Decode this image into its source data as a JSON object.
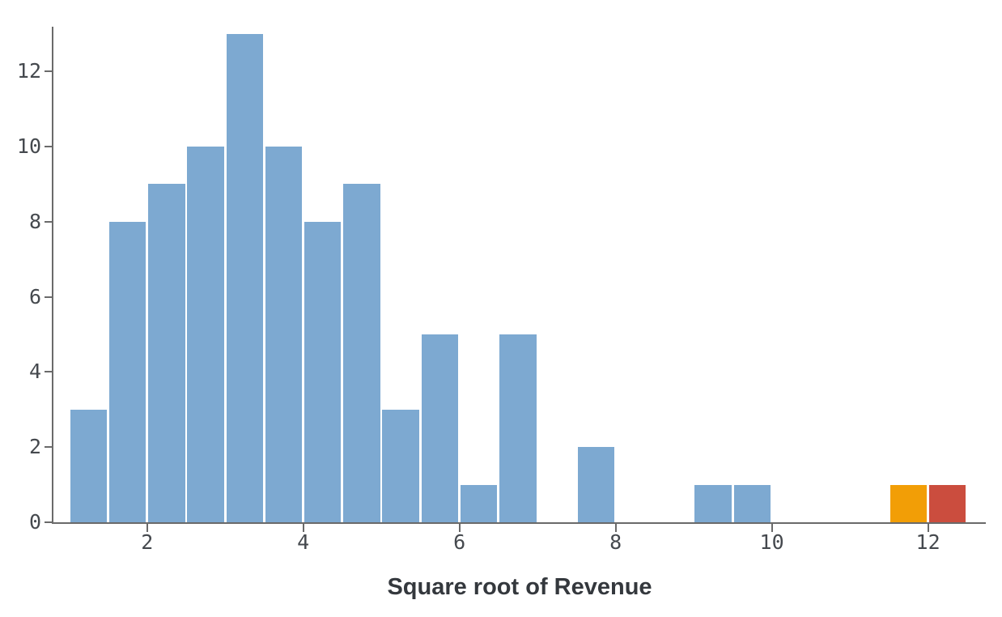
{
  "chart_data": {
    "type": "bar",
    "subtype": "histogram",
    "title": "",
    "xlabel": "Square root of Revenue",
    "ylabel": "",
    "xlim": [
      0.8,
      12.74
    ],
    "ylim": [
      0,
      13.19
    ],
    "x_ticks": [
      2,
      4,
      6,
      8,
      10,
      12
    ],
    "y_ticks": [
      0,
      2,
      4,
      6,
      8,
      10,
      12
    ],
    "grid": false,
    "legend": false,
    "bin_width": 0.5,
    "bars": [
      {
        "x0": 1.0,
        "x1": 1.5,
        "count": 3,
        "color": "blue"
      },
      {
        "x0": 1.5,
        "x1": 2.0,
        "count": 8,
        "color": "blue"
      },
      {
        "x0": 2.0,
        "x1": 2.5,
        "count": 9,
        "color": "blue"
      },
      {
        "x0": 2.5,
        "x1": 3.0,
        "count": 10,
        "color": "blue"
      },
      {
        "x0": 3.0,
        "x1": 3.5,
        "count": 13,
        "color": "blue"
      },
      {
        "x0": 3.5,
        "x1": 4.0,
        "count": 10,
        "color": "blue"
      },
      {
        "x0": 4.0,
        "x1": 4.5,
        "count": 8,
        "color": "blue"
      },
      {
        "x0": 4.5,
        "x1": 5.0,
        "count": 9,
        "color": "blue"
      },
      {
        "x0": 5.0,
        "x1": 5.5,
        "count": 3,
        "color": "blue"
      },
      {
        "x0": 5.5,
        "x1": 6.0,
        "count": 5,
        "color": "blue"
      },
      {
        "x0": 6.0,
        "x1": 6.5,
        "count": 1,
        "color": "blue"
      },
      {
        "x0": 6.5,
        "x1": 7.0,
        "count": 5,
        "color": "blue"
      },
      {
        "x0": 7.5,
        "x1": 8.0,
        "count": 2,
        "color": "blue"
      },
      {
        "x0": 9.0,
        "x1": 9.5,
        "count": 1,
        "color": "blue"
      },
      {
        "x0": 9.5,
        "x1": 10.0,
        "count": 1,
        "color": "blue"
      },
      {
        "x0": 11.5,
        "x1": 12.0,
        "count": 1,
        "color": "orange"
      },
      {
        "x0": 12.0,
        "x1": 12.5,
        "count": 1,
        "color": "red"
      }
    ],
    "colors": {
      "blue": "#7DA9D1",
      "orange": "#F29E06",
      "red": "#CB4D3E"
    },
    "axis_color": "#6A6A6A",
    "tick_label_color": "#45494E",
    "title_color": "#34383D"
  }
}
